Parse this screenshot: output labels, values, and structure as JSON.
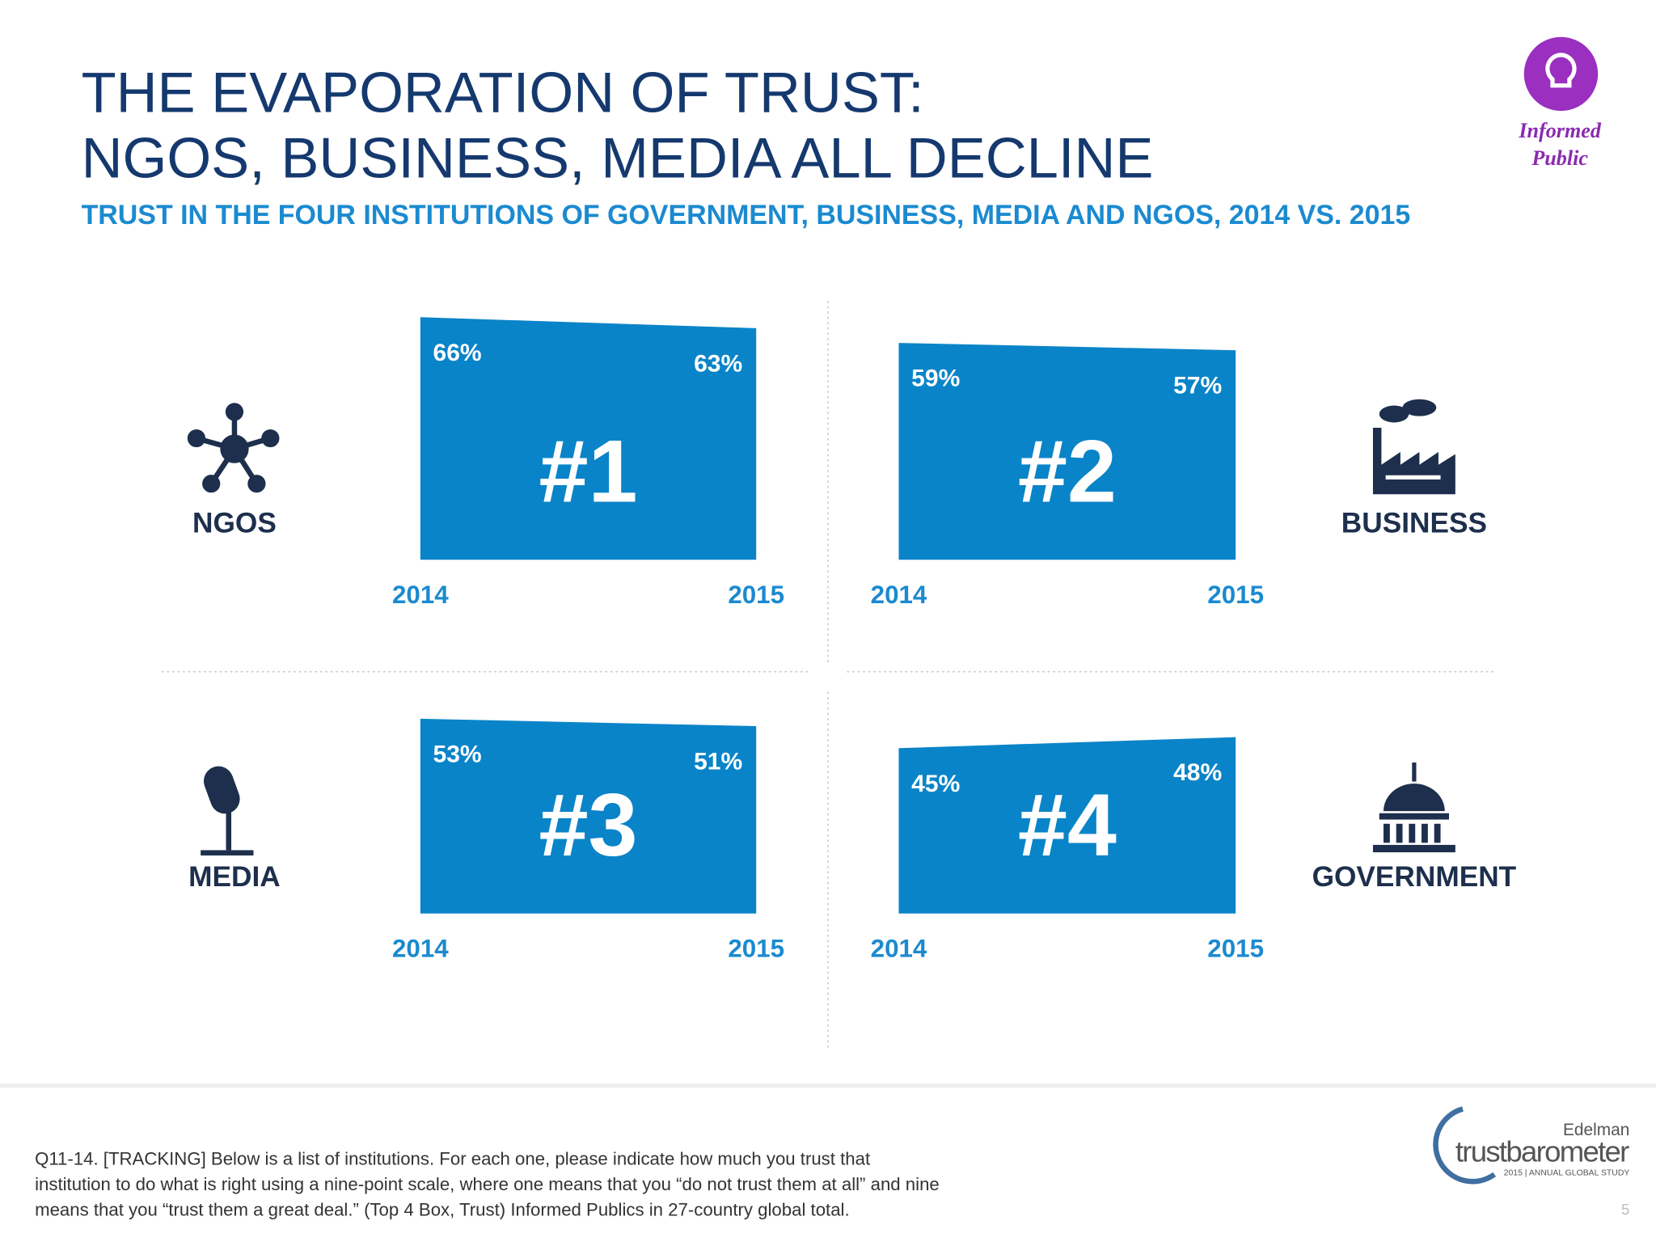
{
  "title": [
    "THE EVAPORATION OF TRUST:",
    "NGOS, BUSINESS, MEDIA ALL DECLINE"
  ],
  "subtitle": "TRUST IN THE FOUR INSTITUTIONS OF GOVERNMENT, BUSINESS, MEDIA AND NGOS, 2014 VS. 2015",
  "badge": [
    "Informed",
    "Public"
  ],
  "footnote": [
    "Q11-14. [TRACKING] Below is a list of institutions. For each one, please indicate how much you trust that",
    "institution to do what is right using a nine-point scale, where one means that you “do not trust them at all” and nine",
    "means that you “trust them a great deal.” (Top 4 Box, Trust) Informed Publics in 27-country global total."
  ],
  "logo": {
    "brand": "Edelman",
    "name": "trustbarometer",
    "study": "2015 | ANNUAL GLOBAL STUDY"
  },
  "page_number": "5",
  "chart_data": [
    {
      "type": "area",
      "label": "NGOS",
      "rank": "#1",
      "categories": [
        "2014",
        "2015"
      ],
      "values": [
        66,
        63
      ],
      "value_labels": [
        "66%",
        "63%"
      ],
      "color": "#0a84c8"
    },
    {
      "type": "area",
      "label": "BUSINESS",
      "rank": "#2",
      "categories": [
        "2014",
        "2015"
      ],
      "values": [
        59,
        57
      ],
      "value_labels": [
        "59%",
        "57%"
      ],
      "color": "#0a84c8"
    },
    {
      "type": "area",
      "label": "MEDIA",
      "rank": "#3",
      "categories": [
        "2014",
        "2015"
      ],
      "values": [
        53,
        51
      ],
      "value_labels": [
        "53%",
        "51%"
      ],
      "color": "#0a84c8"
    },
    {
      "type": "area",
      "label": "GOVERNMENT",
      "rank": "#4",
      "categories": [
        "2014",
        "2015"
      ],
      "values": [
        45,
        48
      ],
      "value_labels": [
        "45%",
        "48%"
      ],
      "color": "#0a84c8"
    }
  ]
}
